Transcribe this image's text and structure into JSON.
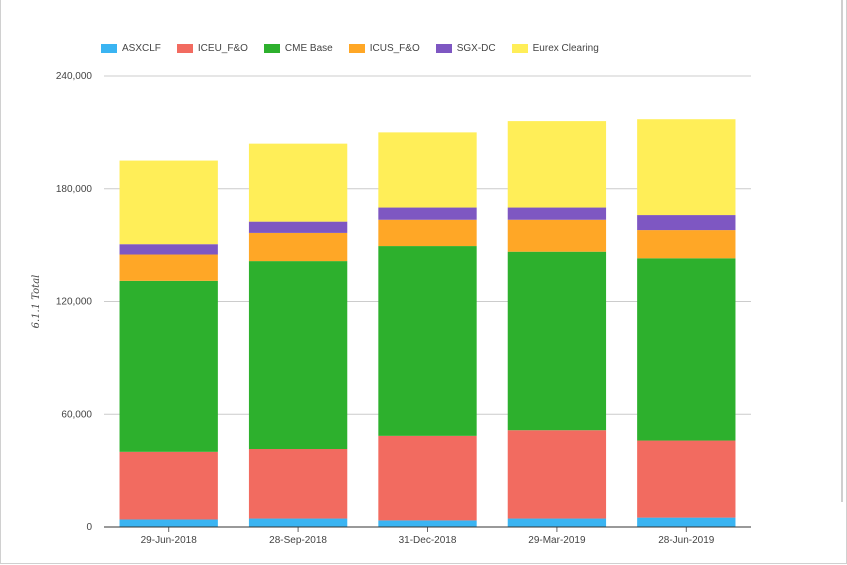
{
  "chart_data": {
    "type": "bar",
    "stacked": true,
    "title": "",
    "xlabel": "",
    "ylabel": "6.1.1 Total",
    "ylim": [
      0,
      240000
    ],
    "yticks": [
      0,
      60000,
      120000,
      180000,
      240000
    ],
    "ytick_labels": [
      "0",
      "60,000",
      "120,000",
      "180,000",
      "240,000"
    ],
    "grid": true,
    "legend_position": "top-left",
    "categories": [
      "29-Jun-2018",
      "28-Sep-2018",
      "31-Dec-2018",
      "29-Mar-2019",
      "28-Jun-2019"
    ],
    "series": [
      {
        "name": "ASXCLF",
        "color": "#3ab4f2",
        "values": [
          4000,
          4500,
          3500,
          4500,
          5000
        ]
      },
      {
        "name": "ICEU_F&O",
        "color": "#f26b60",
        "values": [
          36000,
          37000,
          45000,
          47000,
          41000
        ]
      },
      {
        "name": "CME Base",
        "color": "#2db02d",
        "values": [
          91000,
          100000,
          101000,
          95000,
          97000
        ]
      },
      {
        "name": "ICUS_F&O",
        "color": "#ffa726",
        "values": [
          14000,
          15000,
          14000,
          17000,
          15000
        ]
      },
      {
        "name": "SGX-DC",
        "color": "#7e57c2",
        "values": [
          5500,
          6000,
          6500,
          6500,
          8000
        ]
      },
      {
        "name": "Eurex Clearing",
        "color": "#ffee58",
        "values": [
          44500,
          41500,
          40000,
          46000,
          51000
        ]
      }
    ]
  }
}
